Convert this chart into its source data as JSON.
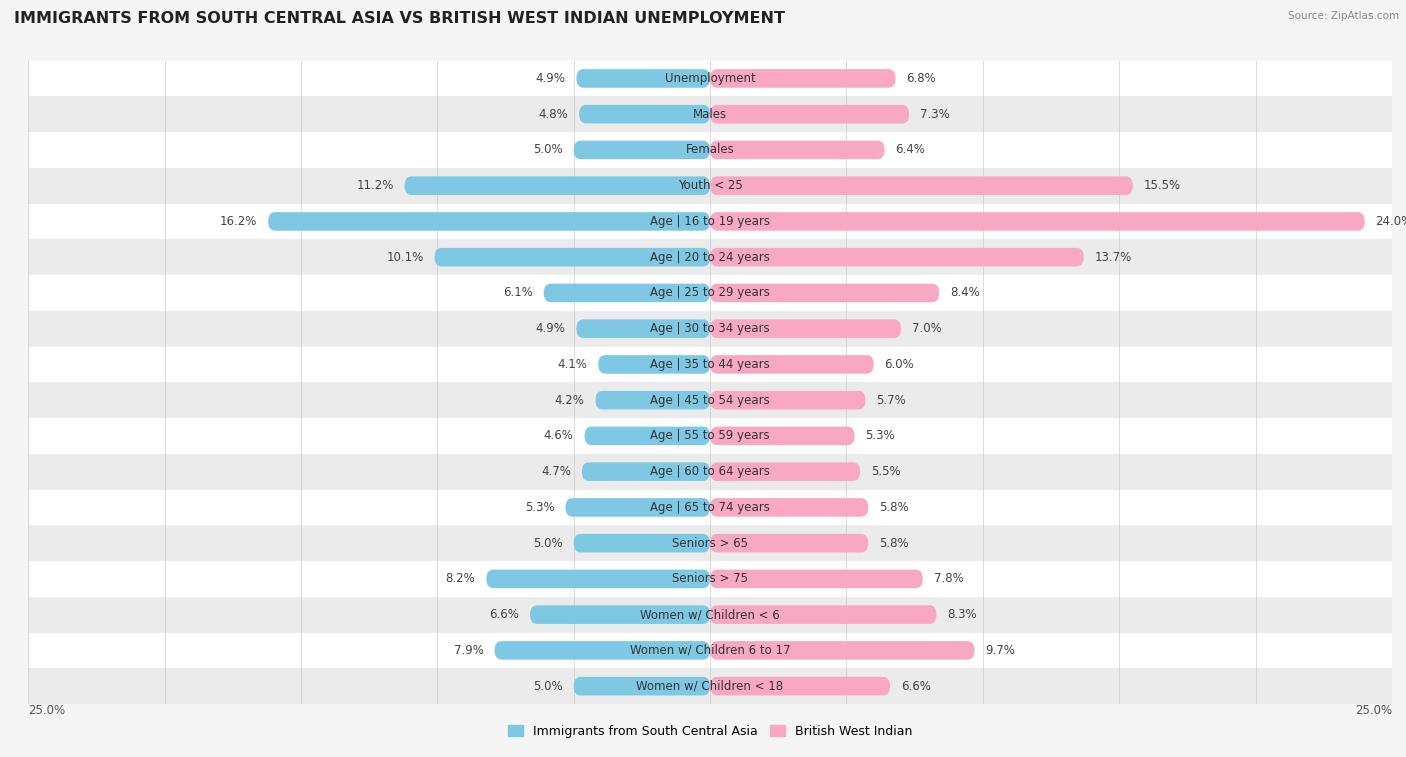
{
  "title": "IMMIGRANTS FROM SOUTH CENTRAL ASIA VS BRITISH WEST INDIAN UNEMPLOYMENT",
  "source": "Source: ZipAtlas.com",
  "categories": [
    "Unemployment",
    "Males",
    "Females",
    "Youth < 25",
    "Age | 16 to 19 years",
    "Age | 20 to 24 years",
    "Age | 25 to 29 years",
    "Age | 30 to 34 years",
    "Age | 35 to 44 years",
    "Age | 45 to 54 years",
    "Age | 55 to 59 years",
    "Age | 60 to 64 years",
    "Age | 65 to 74 years",
    "Seniors > 65",
    "Seniors > 75",
    "Women w/ Children < 6",
    "Women w/ Children 6 to 17",
    "Women w/ Children < 18"
  ],
  "left_values": [
    4.9,
    4.8,
    5.0,
    11.2,
    16.2,
    10.1,
    6.1,
    4.9,
    4.1,
    4.2,
    4.6,
    4.7,
    5.3,
    5.0,
    8.2,
    6.6,
    7.9,
    5.0
  ],
  "right_values": [
    6.8,
    7.3,
    6.4,
    15.5,
    24.0,
    13.7,
    8.4,
    7.0,
    6.0,
    5.7,
    5.3,
    5.5,
    5.8,
    5.8,
    7.8,
    8.3,
    9.7,
    6.6
  ],
  "left_color": "#7ec8e3",
  "right_color": "#f9a8c4",
  "left_label": "Immigrants from South Central Asia",
  "right_label": "British West Indian",
  "bg_color": "#f5f5f5",
  "row_color_odd": "#ffffff",
  "row_color_even": "#ebebeb",
  "xlim": 25.0,
  "title_fontsize": 11.5,
  "label_fontsize": 8.5,
  "value_fontsize": 8.5,
  "bar_height": 0.52,
  "legend_fontsize": 9
}
